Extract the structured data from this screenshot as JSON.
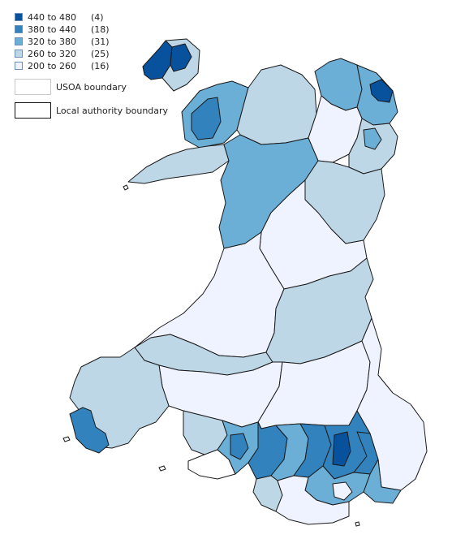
{
  "legend": {
    "classes": [
      {
        "label": "440 to 480",
        "count": "(4)",
        "color": "#08519c"
      },
      {
        "label": "380 to 440",
        "count": "(18)",
        "color": "#3182bd"
      },
      {
        "label": "320 to 380",
        "count": "(31)",
        "color": "#6baed6"
      },
      {
        "label": "260 to 320",
        "count": "(25)",
        "color": "#bdd7e7"
      },
      {
        "label": "200 to 260",
        "count": "(16)",
        "color": "#eff3ff"
      }
    ],
    "boundaries": [
      {
        "label": "USOA boundary"
      },
      {
        "label": "Local authority boundary"
      }
    ]
  }
}
